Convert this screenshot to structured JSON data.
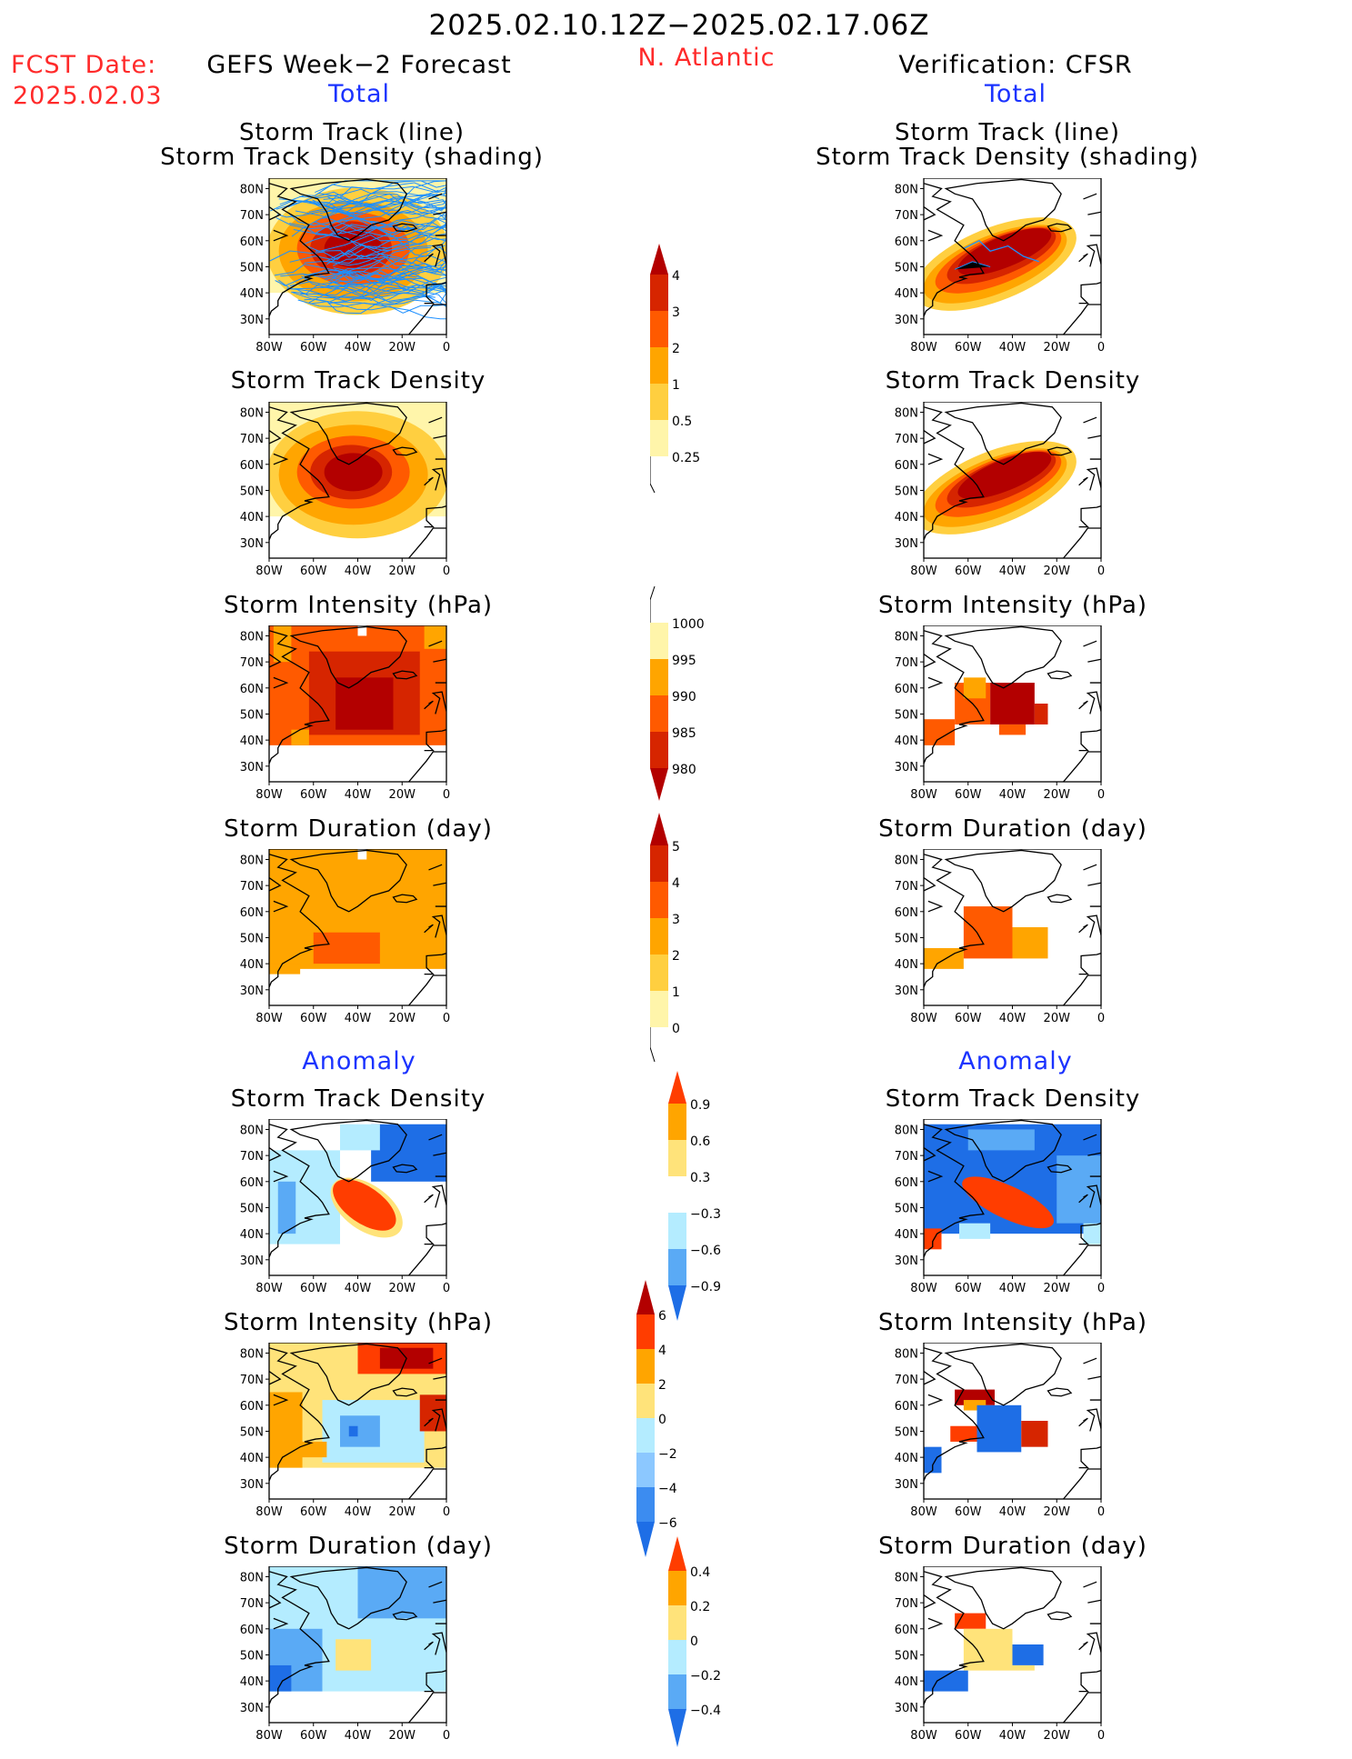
{
  "header": {
    "date_range": "2025.02.10.12Z−2025.02.17.06Z",
    "fcst_label": "FCST Date:",
    "fcst_date": "2025.02.03",
    "left_title": "GEFS Week−2 Forecast",
    "region": "N. Atlantic",
    "right_title": "Verification: CFSR",
    "total_left": "Total",
    "total_right": "Total",
    "anomaly_left": "Anomaly",
    "anomaly_right": "Anomaly"
  },
  "panels": {
    "track_line": "Storm Track (line)",
    "track_density_shading": "Storm Track Density (shading)",
    "track_density": "Storm Track Density",
    "intensity": "Storm Intensity (hPa)",
    "duration": "Storm Duration (day)"
  },
  "axes": {
    "lat_ticks": [
      "80N",
      "70N",
      "60N",
      "50N",
      "40N",
      "30N"
    ],
    "lon_ticks": [
      "80W",
      "60W",
      "40W",
      "20W",
      "0"
    ]
  },
  "colorbars": {
    "density_total": [
      "4",
      "3",
      "2",
      "1",
      "0.5",
      "0.25"
    ],
    "intensity_total": [
      "1000",
      "995",
      "990",
      "985",
      "980"
    ],
    "duration_total": [
      "5",
      "4",
      "3",
      "2",
      "1",
      "0"
    ],
    "density_anom": [
      "0.9",
      "0.6",
      "0.3",
      "−0.3",
      "−0.6",
      "−0.9"
    ],
    "intensity_anom": [
      "6",
      "4",
      "2",
      "0",
      "−2",
      "−4",
      "−6"
    ],
    "duration_anom": [
      "0.4",
      "0.2",
      "0",
      "−0.2",
      "−0.4"
    ]
  },
  "colors": {
    "title_red": "#ff2a2a",
    "title_blue": "#1b33ff",
    "track_blue": "#1e90ff"
  }
}
